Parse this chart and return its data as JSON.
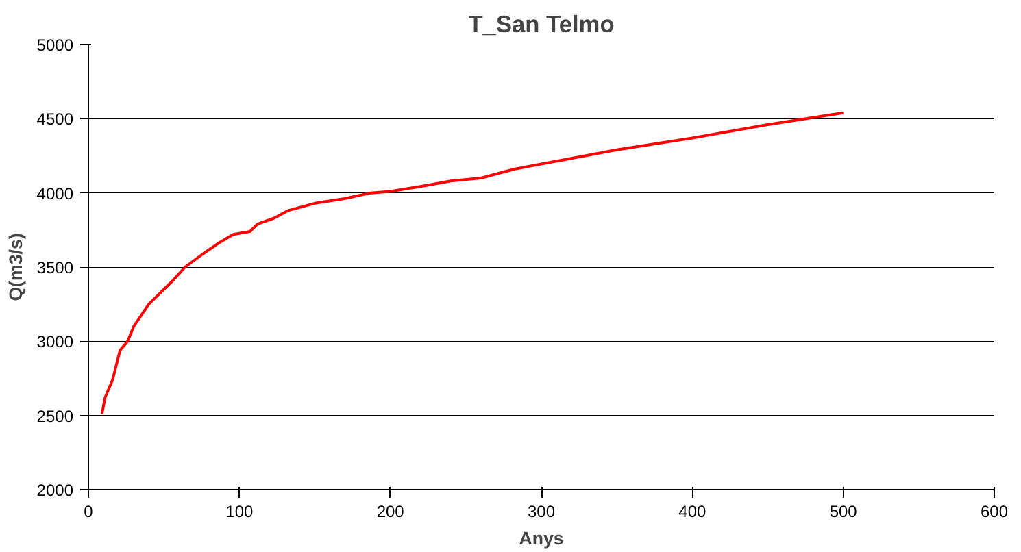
{
  "chart_data": {
    "type": "line",
    "title": "T_San Telmo",
    "xlabel": "Anys",
    "ylabel": "Q(m3/s)",
    "x": [
      9,
      11,
      16,
      21,
      26,
      30,
      40,
      56,
      64,
      76,
      86,
      96,
      107,
      112,
      123,
      132,
      150,
      169,
      187,
      200,
      224,
      240,
      260,
      282,
      350,
      400,
      450,
      500
    ],
    "series": [
      {
        "color": "#ff0000",
        "values": [
          2510,
          2620,
          2740,
          2940,
          3000,
          3100,
          3250,
          3410,
          3500,
          3590,
          3660,
          3720,
          3740,
          3790,
          3830,
          3880,
          3930,
          3960,
          4000,
          4010,
          4050,
          4080,
          4100,
          4160,
          4290,
          4370,
          4460,
          4540
        ]
      }
    ],
    "xlim": [
      0,
      600
    ],
    "ylim": [
      2000,
      5000
    ],
    "xticks": [
      0,
      100,
      200,
      300,
      400,
      500,
      600
    ],
    "yticks": [
      2000,
      2500,
      3000,
      3500,
      4000,
      4500,
      5000
    ],
    "grid": "y",
    "marker": "none",
    "line_style": "solid"
  }
}
